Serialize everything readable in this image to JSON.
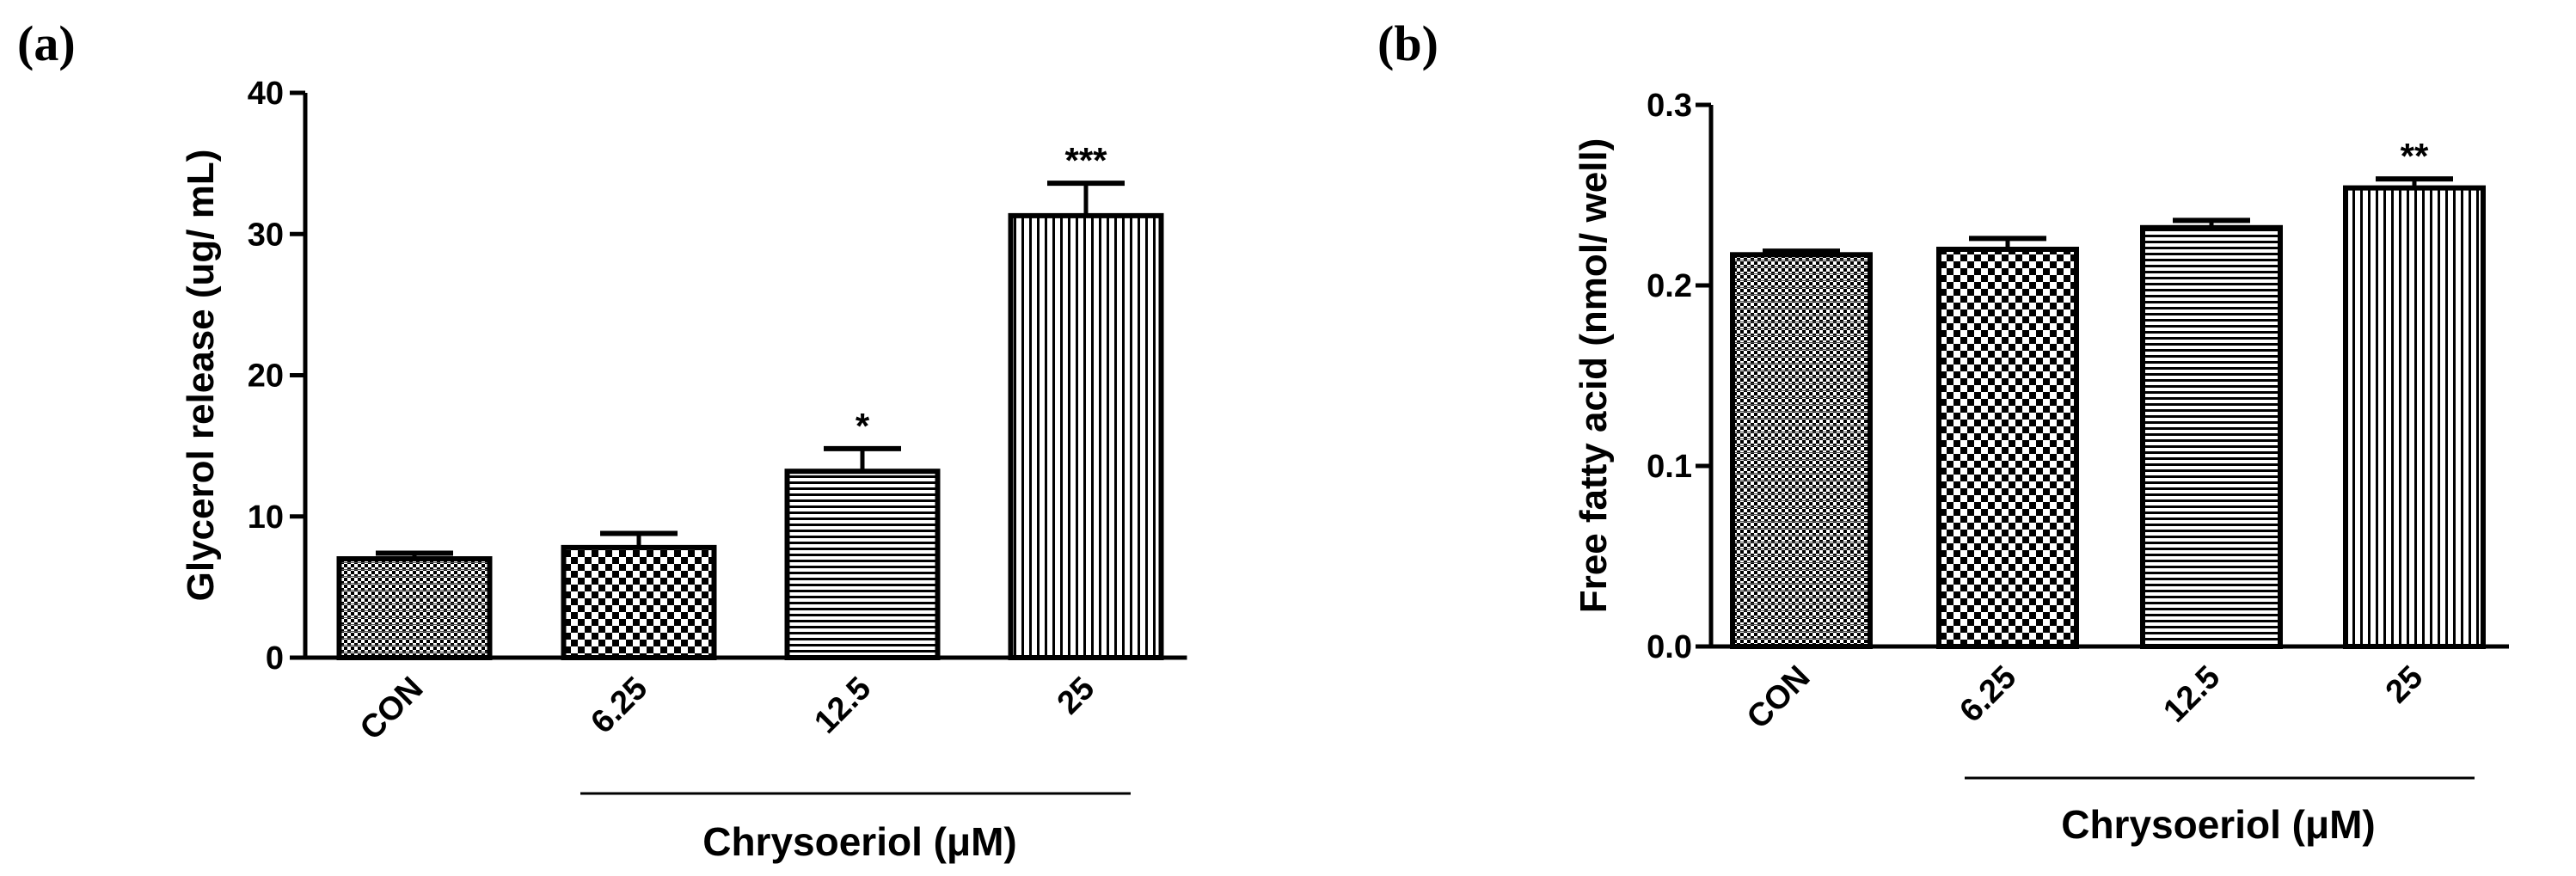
{
  "chart_data": [
    {
      "type": "bar",
      "panel_label": "(a)",
      "categories": [
        "CON",
        "6.25",
        "12.5",
        "25"
      ],
      "values": [
        7.0,
        7.8,
        13.2,
        31.3
      ],
      "errors": [
        0.4,
        1.0,
        1.6,
        2.3
      ],
      "significance": [
        "",
        "",
        "*",
        "***"
      ],
      "patterns": [
        "grid",
        "checker",
        "horizontal",
        "vertical"
      ],
      "ylabel": "Glycerol release (ug/ mL)",
      "group_label": "Chrysoeriol (μM)",
      "ylim": [
        0,
        40
      ],
      "yticks": [
        0,
        10,
        20,
        30,
        40
      ],
      "ytick_labels": [
        "0",
        "10",
        "20",
        "30",
        "40"
      ]
    },
    {
      "type": "bar",
      "panel_label": "(b)",
      "categories": [
        "CON",
        "6.25",
        "12.5",
        "25"
      ],
      "values": [
        0.217,
        0.22,
        0.232,
        0.254
      ],
      "errors": [
        0.002,
        0.006,
        0.004,
        0.005
      ],
      "significance": [
        "",
        "",
        "",
        "**"
      ],
      "patterns": [
        "grid",
        "checker",
        "horizontal",
        "vertical"
      ],
      "ylabel": "Free fatty acid (nmol/ well)",
      "group_label": "Chrysoeriol (μM)",
      "ylim": [
        0,
        0.3
      ],
      "yticks": [
        0,
        0.1,
        0.2,
        0.3
      ],
      "ytick_labels": [
        "0.0",
        "0.1",
        "0.2",
        "0.3"
      ]
    }
  ]
}
